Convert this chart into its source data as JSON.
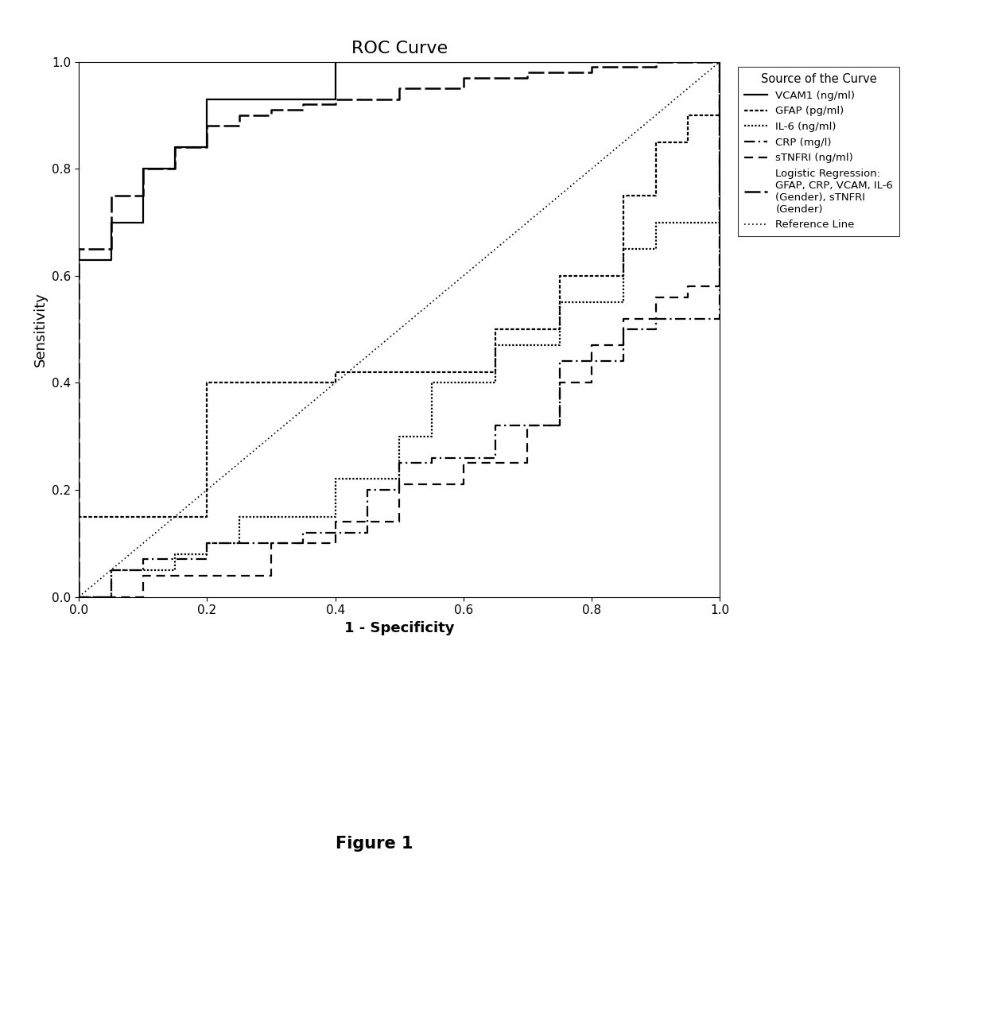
{
  "title": "ROC Curve",
  "xlabel": "1 - Specificity",
  "ylabel": "Sensitivity",
  "figure_caption": "Figure 1",
  "legend_title": "Source of the Curve",
  "xlim": [
    0.0,
    1.0
  ],
  "ylim": [
    0.0,
    1.0
  ],
  "xticks": [
    0.0,
    0.2,
    0.4,
    0.6,
    0.8,
    1.0
  ],
  "yticks": [
    0.0,
    0.2,
    0.4,
    0.6,
    0.8,
    1.0
  ],
  "background_color": "#ffffff",
  "curves": {
    "VCAM1": {
      "label": "VCAM1 (ng/ml)",
      "color": "#000000",
      "linewidth": 1.6,
      "x": [
        0.0,
        0.0,
        0.0,
        0.0,
        0.0,
        0.0,
        0.05,
        0.05,
        0.05,
        0.1,
        0.1,
        0.1,
        0.15,
        0.15,
        0.2,
        0.2,
        0.25,
        0.3,
        0.35,
        0.4,
        1.0
      ],
      "y": [
        0.0,
        0.35,
        0.48,
        0.57,
        0.6,
        0.63,
        0.63,
        0.67,
        0.7,
        0.7,
        0.78,
        0.8,
        0.8,
        0.84,
        0.84,
        0.93,
        0.93,
        0.93,
        0.93,
        1.0,
        1.0
      ]
    },
    "GFAP": {
      "label": "GFAP (pg/ml)",
      "color": "#000000",
      "linewidth": 1.6,
      "x": [
        0.0,
        0.0,
        0.05,
        0.1,
        0.15,
        0.2,
        0.2,
        0.25,
        0.3,
        0.35,
        0.4,
        0.45,
        0.5,
        0.55,
        0.6,
        0.65,
        0.7,
        0.75,
        0.8,
        0.85,
        0.9,
        0.95,
        1.0
      ],
      "y": [
        0.0,
        0.15,
        0.15,
        0.15,
        0.15,
        0.15,
        0.4,
        0.4,
        0.4,
        0.4,
        0.42,
        0.42,
        0.42,
        0.42,
        0.42,
        0.5,
        0.5,
        0.6,
        0.6,
        0.75,
        0.85,
        0.9,
        1.0
      ]
    },
    "IL6": {
      "label": "IL-6 (ng/ml)",
      "color": "#000000",
      "linewidth": 1.6,
      "x": [
        0.0,
        0.05,
        0.1,
        0.15,
        0.2,
        0.25,
        0.3,
        0.35,
        0.4,
        0.45,
        0.5,
        0.55,
        0.6,
        0.65,
        0.7,
        0.75,
        0.8,
        0.85,
        0.9,
        1.0
      ],
      "y": [
        0.0,
        0.05,
        0.05,
        0.08,
        0.1,
        0.15,
        0.15,
        0.15,
        0.22,
        0.22,
        0.3,
        0.4,
        0.4,
        0.47,
        0.47,
        0.55,
        0.55,
        0.65,
        0.7,
        1.0
      ]
    },
    "CRP": {
      "label": "CRP (mg/l)",
      "color": "#000000",
      "linewidth": 1.6,
      "x": [
        0.0,
        0.05,
        0.1,
        0.2,
        0.3,
        0.35,
        0.4,
        0.45,
        0.5,
        0.55,
        0.6,
        0.65,
        0.7,
        0.75,
        0.8,
        0.85,
        0.9,
        0.95,
        1.0
      ],
      "y": [
        0.0,
        0.05,
        0.07,
        0.1,
        0.1,
        0.12,
        0.12,
        0.2,
        0.25,
        0.26,
        0.26,
        0.32,
        0.32,
        0.44,
        0.44,
        0.5,
        0.52,
        0.52,
        1.0
      ]
    },
    "sTNFRI": {
      "label": "sTNFRI (ng/ml)",
      "color": "#000000",
      "linewidth": 1.6,
      "x": [
        0.0,
        0.1,
        0.2,
        0.3,
        0.35,
        0.4,
        0.5,
        0.55,
        0.6,
        0.65,
        0.7,
        0.75,
        0.8,
        0.85,
        0.9,
        0.95,
        1.0
      ],
      "y": [
        0.0,
        0.04,
        0.04,
        0.1,
        0.1,
        0.14,
        0.21,
        0.21,
        0.25,
        0.25,
        0.32,
        0.4,
        0.47,
        0.52,
        0.56,
        0.58,
        1.0
      ]
    },
    "LogReg": {
      "label": "Logistic Regression:\nGFAP, CRP, VCAM, IL-6\n(Gender), sTNFRI\n(Gender)",
      "color": "#000000",
      "linewidth": 1.8,
      "x": [
        0.0,
        0.0,
        0.05,
        0.1,
        0.15,
        0.2,
        0.25,
        0.3,
        0.35,
        0.4,
        0.5,
        0.6,
        0.7,
        0.8,
        0.9,
        1.0
      ],
      "y": [
        0.0,
        0.65,
        0.75,
        0.8,
        0.84,
        0.88,
        0.9,
        0.91,
        0.92,
        0.93,
        0.95,
        0.97,
        0.98,
        0.99,
        1.0,
        1.0
      ]
    },
    "Reference": {
      "label": "Reference Line",
      "color": "#000000",
      "linewidth": 1.2,
      "x": [
        0.0,
        1.0
      ],
      "y": [
        0.0,
        1.0
      ]
    }
  }
}
